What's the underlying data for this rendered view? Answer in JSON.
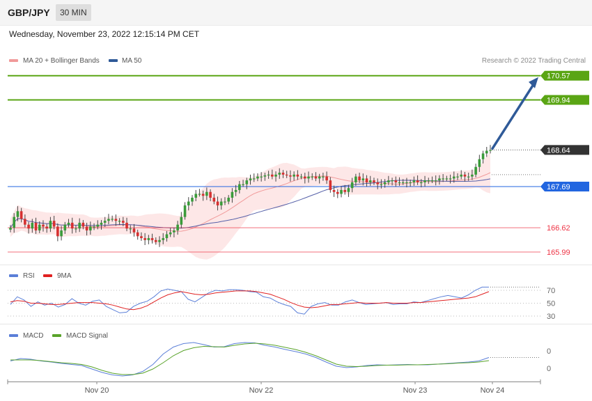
{
  "header": {
    "pair": "GBP/JPY",
    "timeframe": "30 MIN"
  },
  "datetime": "Wednesday, November 23, 2022 12:15:14 PM CET",
  "credit": "Research © 2022 Trading Central",
  "colors": {
    "resistance": "#5aa514",
    "support": "#ee3344",
    "pivot": "#2266e0",
    "last": "#333333",
    "bollinger_fill": "#fde3e3",
    "ma20": "#f19a9a",
    "ma50": "#5560a8",
    "rsi": "#5b7fd8",
    "rsi_ma": "#e02020",
    "macd": "#5b7fd8",
    "macd_signal": "#59a32a",
    "candle_up": "#3a9b3a",
    "candle_down": "#d63030",
    "arrow": "#2f5a98"
  },
  "chart_data": [
    {
      "type": "candlestick",
      "panel": "price",
      "legend": [
        {
          "name": "MA 20 + Bollinger Bands",
          "color": "#f19a9a"
        },
        {
          "name": "MA 50",
          "color": "#2f5a98"
        }
      ],
      "x_labels": [
        "Nov 20",
        "Nov 22",
        "Nov 23",
        "Nov 24"
      ],
      "ylim": [
        165.7,
        170.8
      ],
      "levels": [
        {
          "value": 170.57,
          "label": "170.57",
          "kind": "resistance"
        },
        {
          "value": 169.94,
          "label": "169.94",
          "kind": "resistance"
        },
        {
          "value": 168.64,
          "label": "168.64",
          "kind": "last"
        },
        {
          "value": 167.69,
          "label": "167.69",
          "kind": "pivot"
        },
        {
          "value": 166.62,
          "label": "166.62",
          "kind": "support"
        },
        {
          "value": 165.99,
          "label": "165.99",
          "kind": "support"
        }
      ],
      "closes": [
        166.62,
        166.9,
        167.05,
        166.85,
        166.7,
        166.6,
        166.75,
        166.55,
        166.7,
        166.65,
        166.6,
        166.8,
        166.65,
        166.4,
        166.55,
        166.7,
        166.75,
        166.6,
        166.6,
        166.75,
        166.65,
        166.55,
        166.65,
        166.65,
        166.7,
        166.75,
        166.8,
        166.85,
        166.85,
        166.8,
        166.8,
        166.75,
        166.6,
        166.6,
        166.5,
        166.4,
        166.35,
        166.3,
        166.35,
        166.3,
        166.25,
        166.3,
        166.35,
        166.45,
        166.5,
        166.55,
        166.7,
        166.9,
        167.2,
        167.3,
        167.4,
        167.5,
        167.5,
        167.45,
        167.55,
        167.4,
        167.3,
        167.2,
        167.3,
        167.3,
        167.4,
        167.55,
        167.6,
        167.75,
        167.75,
        167.85,
        167.9,
        167.9,
        167.95,
        167.95,
        167.98,
        168.0,
        167.95,
        168.0,
        168.05,
        168.0,
        167.98,
        167.95,
        168.0,
        167.95,
        167.95,
        167.9,
        167.95,
        167.95,
        167.9,
        167.95,
        167.95,
        167.85,
        167.6,
        167.55,
        167.5,
        167.6,
        167.55,
        167.65,
        167.8,
        167.95,
        167.85,
        167.9,
        167.8,
        167.85,
        167.8,
        167.75,
        167.75,
        167.8,
        167.85,
        167.85,
        167.8,
        167.8,
        167.8,
        167.8,
        167.8,
        167.85,
        167.8,
        167.8,
        167.85,
        167.85,
        167.85,
        167.85,
        167.9,
        167.9,
        167.9,
        167.9,
        167.95,
        167.95,
        168.0,
        167.95,
        167.95,
        168.0,
        168.2,
        168.4,
        168.55,
        168.62,
        168.64
      ],
      "annotation": {
        "type": "arrow",
        "direction": "up",
        "target": 170.57
      }
    },
    {
      "type": "line",
      "panel": "rsi",
      "legend": [
        {
          "name": "RSI",
          "color": "#5b7fd8"
        },
        {
          "name": "9MA",
          "color": "#e02020"
        }
      ],
      "y_ticks": [
        "70",
        "50",
        "30"
      ],
      "series": [
        {
          "name": "RSI",
          "values": [
            48,
            60,
            55,
            45,
            52,
            47,
            50,
            44,
            48,
            57,
            50,
            47,
            53,
            55,
            45,
            40,
            35,
            36,
            45,
            50,
            53,
            60,
            69,
            72,
            70,
            68,
            56,
            52,
            59,
            66,
            70,
            69,
            71,
            71,
            70,
            68,
            67,
            60,
            58,
            52,
            48,
            45,
            35,
            33,
            45,
            49,
            51,
            47,
            47,
            52,
            55,
            51,
            48,
            49,
            50,
            51,
            48,
            49,
            49,
            52,
            51,
            54,
            57,
            60,
            62,
            60,
            58,
            63,
            70,
            75,
            75
          ]
        },
        {
          "name": "9MA",
          "values": [
            52,
            54,
            53,
            50,
            50,
            49,
            48,
            48,
            49,
            50,
            51,
            51,
            51,
            50,
            49,
            47,
            44,
            41,
            40,
            42,
            46,
            52,
            58,
            63,
            66,
            68,
            66,
            64,
            63,
            64,
            66,
            67,
            68,
            69,
            69,
            69,
            68,
            66,
            64,
            60,
            56,
            51,
            47,
            44,
            43,
            44,
            46,
            48,
            48,
            49,
            50,
            51,
            50,
            50,
            50,
            51,
            50,
            50,
            50,
            51,
            51,
            52,
            53,
            54,
            55,
            56,
            57,
            58,
            60,
            64,
            68
          ]
        }
      ]
    },
    {
      "type": "line",
      "panel": "macd",
      "legend": [
        {
          "name": "MACD",
          "color": "#5b7fd8"
        },
        {
          "name": "MACD Signal",
          "color": "#59a32a"
        }
      ],
      "y_ticks": [
        "0",
        "0"
      ],
      "series": [
        {
          "name": "MACD",
          "values": [
            0.05,
            0.12,
            0.1,
            0.05,
            0.02,
            -0.02,
            -0.05,
            -0.08,
            -0.18,
            -0.28,
            -0.35,
            -0.38,
            -0.35,
            -0.25,
            -0.05,
            0.25,
            0.45,
            0.55,
            0.58,
            0.52,
            0.45,
            0.46,
            0.55,
            0.58,
            0.57,
            0.5,
            0.45,
            0.38,
            0.32,
            0.25,
            0.15,
            0.02,
            -0.1,
            -0.14,
            -0.12,
            -0.08,
            -0.06,
            -0.07,
            -0.06,
            -0.05,
            -0.06,
            -0.06,
            -0.04,
            -0.02,
            0.0,
            0.02,
            0.05,
            0.15
          ]
        },
        {
          "name": "MACD Signal",
          "values": [
            0.08,
            0.08,
            0.08,
            0.06,
            0.03,
            0.0,
            -0.02,
            -0.05,
            -0.12,
            -0.22,
            -0.3,
            -0.34,
            -0.34,
            -0.3,
            -0.18,
            0.0,
            0.2,
            0.35,
            0.43,
            0.47,
            0.46,
            0.45,
            0.5,
            0.54,
            0.56,
            0.54,
            0.5,
            0.44,
            0.38,
            0.3,
            0.2,
            0.08,
            -0.04,
            -0.1,
            -0.11,
            -0.1,
            -0.08,
            -0.07,
            -0.07,
            -0.06,
            -0.06,
            -0.05,
            -0.04,
            -0.03,
            -0.01,
            0.0,
            0.02,
            0.06
          ]
        }
      ]
    }
  ]
}
